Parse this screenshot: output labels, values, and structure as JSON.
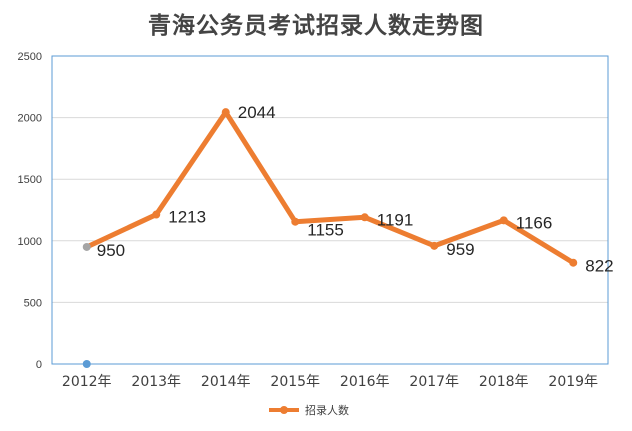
{
  "chart_data": {
    "type": "line",
    "title": "青海公务员考试招录人数走势图",
    "categories": [
      "2012年",
      "2013年",
      "2014年",
      "2015年",
      "2016年",
      "2017年",
      "2018年",
      "2019年"
    ],
    "series": [
      {
        "name": "招录人数",
        "values": [
          950,
          1213,
          2044,
          1155,
          1191,
          959,
          1166,
          822
        ],
        "color": "#ED7D31"
      }
    ],
    "ylim": [
      0,
      2500
    ],
    "yticks": [
      0,
      500,
      1000,
      1500,
      2000,
      2500
    ],
    "grid": true,
    "legend": "bottom",
    "plot_border_color": "#5B9BD5",
    "stray_marker_color": "#5B9BD5",
    "first_marker_color": "#A5A5A5"
  }
}
